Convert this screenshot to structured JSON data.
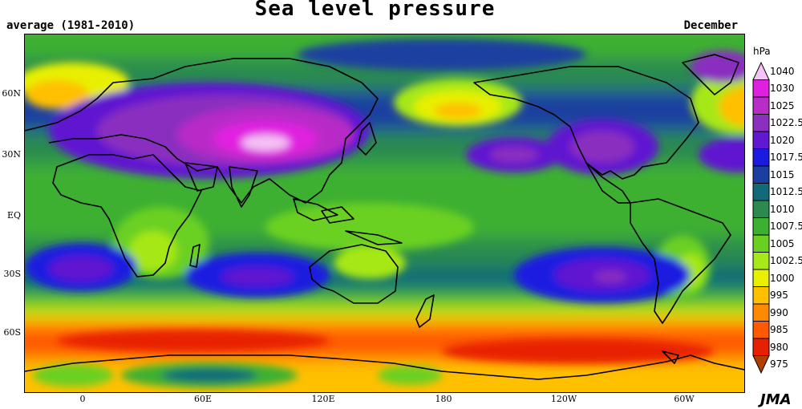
{
  "header": {
    "title": "Sea level pressure",
    "period": "average (1981-2010)",
    "month": "December"
  },
  "axes": {
    "lat_labels": [
      "60N",
      "30N",
      "EQ",
      "30S",
      "60S"
    ],
    "lon_labels": [
      "0",
      "60E",
      "120E",
      "180",
      "120W",
      "60W"
    ]
  },
  "legend": {
    "unit": "hPa",
    "levels": [
      "1040",
      "1030",
      "1025",
      "1022.5",
      "1020",
      "1017.5",
      "1015",
      "1012.5",
      "1010",
      "1007.5",
      "1005",
      "1002.5",
      "1000",
      "995",
      "990",
      "985",
      "980",
      "975"
    ],
    "colors": [
      "#f4c2f4",
      "#e020e0",
      "#b82cc8",
      "#8a2fbf",
      "#6018d0",
      "#1a1ae0",
      "#1a3fa0",
      "#106a78",
      "#2a8a50",
      "#3cb030",
      "#6ad020",
      "#a6e818",
      "#e8f000",
      "#ffc000",
      "#ff8a00",
      "#ff5a00",
      "#e82000",
      "#b04000"
    ]
  },
  "credit": "JMA"
}
